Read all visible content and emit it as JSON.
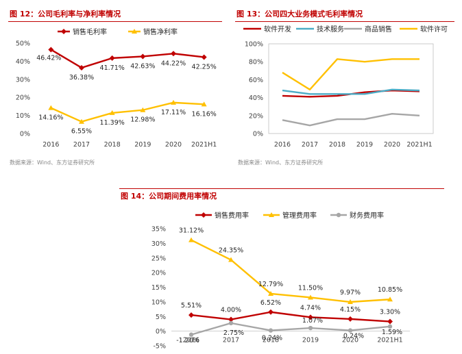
{
  "colors": {
    "red": "#c00000",
    "yellow": "#ffc000",
    "blue": "#4bacc6",
    "gray": "#a6a6a6",
    "darkred": "#c00000"
  },
  "charts": [
    {
      "figure_title": "图 12：公司毛利率与净利率情况",
      "source": "数据来源：Wind、东方证券研究所",
      "chart_data": {
        "type": "line",
        "categories": [
          "2016",
          "2017",
          "2018",
          "2019",
          "2020",
          "2021H1"
        ],
        "y_ticks": [
          "0%",
          "10%",
          "20%",
          "30%",
          "40%",
          "50%"
        ],
        "ylim": [
          0,
          50
        ],
        "legend_position": "top",
        "series": [
          {
            "name": "销售毛利率",
            "values": [
              46.42,
              36.38,
              41.71,
              42.63,
              44.22,
              42.25
            ],
            "labels": [
              "46.42%",
              "36.38%",
              "41.71%",
              "42.63%",
              "44.22%",
              "42.25%"
            ],
            "color": "#c00000",
            "marker": "diamond"
          },
          {
            "name": "销售净利率",
            "values": [
              14.16,
              6.55,
              11.39,
              12.98,
              17.11,
              16.16
            ],
            "labels": [
              "14.16%",
              "6.55%",
              "11.39%",
              "12.98%",
              "17.11%",
              "16.16%"
            ],
            "color": "#ffc000",
            "marker": "triangle"
          }
        ]
      }
    },
    {
      "figure_title": "图 13：公司四大业务模式毛利率情况",
      "source": "数据来源：Wind、东方证券研究所",
      "chart_data": {
        "type": "line",
        "categories": [
          "2016",
          "2017",
          "2018",
          "2019",
          "2020",
          "2021H1"
        ],
        "y_ticks": [
          "0%",
          "20%",
          "40%",
          "60%",
          "80%",
          "100%"
        ],
        "ylim": [
          0,
          100
        ],
        "legend_position": "top",
        "series": [
          {
            "name": "软件开发",
            "values": [
              42,
              41,
              42,
              46,
              48,
              47
            ],
            "color": "#c00000",
            "marker": "none"
          },
          {
            "name": "技术服务",
            "values": [
              48,
              44,
              44,
              44,
              49,
              48
            ],
            "color": "#4bacc6",
            "marker": "none"
          },
          {
            "name": "商品销售",
            "values": [
              15,
              9,
              16,
              16,
              22,
              20
            ],
            "color": "#a6a6a6",
            "marker": "none"
          },
          {
            "name": "软件许可",
            "values": [
              68,
              49,
              83,
              80,
              83,
              83
            ],
            "color": "#ffc000",
            "marker": "none"
          }
        ]
      }
    },
    {
      "figure_title": "图 14：公司期间费用率情况",
      "chart_data": {
        "type": "line",
        "categories": [
          "2016",
          "2017",
          "2018",
          "2019",
          "2020",
          "2021H1"
        ],
        "y_ticks": [
          "-5%",
          "0%",
          "5%",
          "10%",
          "15%",
          "20%",
          "25%",
          "30%",
          "35%"
        ],
        "ylim": [
          -5,
          35
        ],
        "legend_position": "top",
        "series": [
          {
            "name": "销售费用率",
            "values": [
              5.51,
              4.0,
              6.52,
              4.74,
              4.15,
              3.3
            ],
            "labels": [
              "5.51%",
              "4.00%",
              "6.52%",
              "4.74%",
              "4.15%",
              "3.30%"
            ],
            "color": "#c00000",
            "marker": "diamond"
          },
          {
            "name": "管理费用率",
            "values": [
              31.12,
              24.35,
              12.79,
              11.5,
              9.97,
              10.85
            ],
            "labels": [
              "31.12%",
              "24.35%",
              "12.79%",
              "11.50%",
              "9.97%",
              "10.85%"
            ],
            "color": "#ffc000",
            "marker": "triangle"
          },
          {
            "name": "财务费用率",
            "values": [
              -1.2,
              2.75,
              0.24,
              1.07,
              0.24,
              1.59
            ],
            "labels": [
              "-1.20%",
              "2.75%",
              "0.24%",
              "1.07%",
              "0.24%",
              "1.59%"
            ],
            "color": "#a6a6a6",
            "marker": "circle"
          }
        ]
      }
    }
  ]
}
